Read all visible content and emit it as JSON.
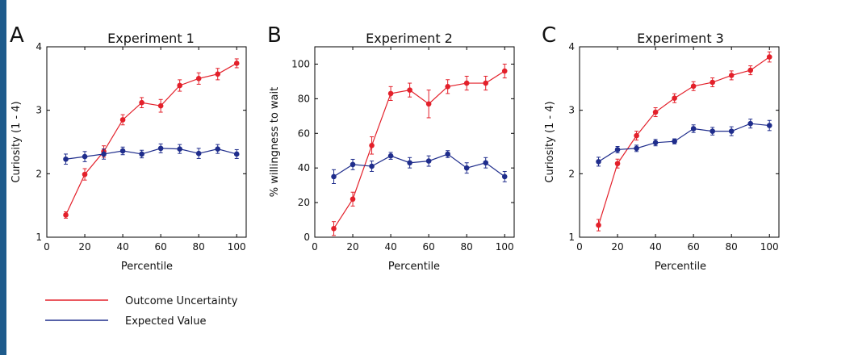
{
  "legend": [
    {
      "label": "Outcome Uncertainty",
      "color": "#e3202a"
    },
    {
      "label": "Expected Value",
      "color": "#1f2d8c"
    }
  ],
  "chart_data": [
    {
      "panel": "A",
      "type": "line",
      "title": "Experiment 1",
      "xlabel": "Percentile",
      "ylabel": "Curiosity (1 - 4)",
      "xlim": [
        0,
        105
      ],
      "ylim": [
        1,
        4
      ],
      "xticks": [
        0,
        20,
        40,
        60,
        80,
        100
      ],
      "yticks": [
        1,
        2,
        3,
        4
      ],
      "x": [
        10,
        20,
        30,
        40,
        50,
        60,
        70,
        80,
        90,
        100
      ],
      "series": [
        {
          "name": "Outcome Uncertainty",
          "color": "#e3202a",
          "values": [
            1.35,
            1.99,
            2.35,
            2.85,
            3.12,
            3.07,
            3.39,
            3.5,
            3.57,
            3.74
          ],
          "errors": [
            0.05,
            0.09,
            0.09,
            0.08,
            0.08,
            0.1,
            0.09,
            0.09,
            0.09,
            0.07
          ]
        },
        {
          "name": "Expected Value",
          "color": "#1f2d8c",
          "values": [
            2.23,
            2.27,
            2.31,
            2.36,
            2.31,
            2.4,
            2.39,
            2.32,
            2.39,
            2.31
          ],
          "errors": [
            0.08,
            0.08,
            0.08,
            0.06,
            0.06,
            0.07,
            0.07,
            0.08,
            0.07,
            0.07
          ]
        }
      ]
    },
    {
      "panel": "B",
      "type": "line",
      "title": "Experiment 2",
      "xlabel": "Percentile",
      "ylabel": "% willingness to wait",
      "xlim": [
        0,
        105
      ],
      "ylim": [
        0,
        110
      ],
      "xticks": [
        0,
        20,
        40,
        60,
        80,
        100
      ],
      "yticks": [
        0,
        20,
        40,
        60,
        80,
        100
      ],
      "x": [
        10,
        20,
        30,
        40,
        50,
        60,
        70,
        80,
        90,
        100
      ],
      "series": [
        {
          "name": "Outcome Uncertainty",
          "color": "#e3202a",
          "values": [
            5,
            22,
            53,
            83,
            85,
            77,
            87,
            89,
            89,
            96
          ],
          "errors": [
            4,
            4,
            5,
            4,
            4,
            8,
            4,
            4,
            4,
            4
          ]
        },
        {
          "name": "Expected Value",
          "color": "#1f2d8c",
          "values": [
            35,
            42,
            41,
            47,
            43,
            44,
            48,
            40,
            43,
            35
          ],
          "errors": [
            4,
            3,
            3,
            2,
            3,
            3,
            2,
            3,
            3,
            3
          ]
        }
      ]
    },
    {
      "panel": "C",
      "type": "line",
      "title": "Experiment 3",
      "xlabel": "Percentile",
      "ylabel": "Curiosity (1 - 4)",
      "xlim": [
        0,
        105
      ],
      "ylim": [
        1,
        4
      ],
      "xticks": [
        0,
        20,
        40,
        60,
        80,
        100
      ],
      "yticks": [
        1,
        2,
        3,
        4
      ],
      "x": [
        10,
        20,
        30,
        40,
        50,
        60,
        70,
        80,
        90,
        100
      ],
      "series": [
        {
          "name": "Outcome Uncertainty",
          "color": "#e3202a",
          "values": [
            1.19,
            2.16,
            2.6,
            2.97,
            3.19,
            3.38,
            3.44,
            3.55,
            3.63,
            3.84
          ],
          "errors": [
            0.09,
            0.07,
            0.07,
            0.07,
            0.07,
            0.07,
            0.07,
            0.07,
            0.07,
            0.08
          ]
        },
        {
          "name": "Expected Value",
          "color": "#1f2d8c",
          "values": [
            2.19,
            2.38,
            2.4,
            2.49,
            2.51,
            2.71,
            2.67,
            2.67,
            2.79,
            2.76
          ],
          "errors": [
            0.07,
            0.05,
            0.05,
            0.05,
            0.04,
            0.06,
            0.06,
            0.07,
            0.07,
            0.08
          ]
        }
      ]
    }
  ]
}
